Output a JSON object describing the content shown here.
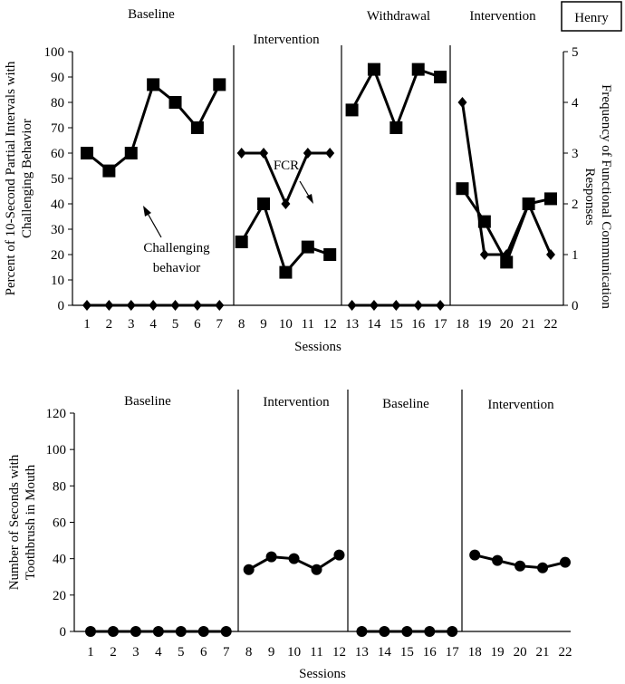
{
  "participant": "Henry",
  "chart_data": [
    {
      "type": "line",
      "x": [
        1,
        2,
        3,
        4,
        5,
        6,
        7,
        8,
        9,
        10,
        11,
        12,
        13,
        14,
        15,
        16,
        17,
        18,
        19,
        20,
        21,
        22
      ],
      "xlabel": "Sessions",
      "ylabel_lines": [
        "Percent of 10-Second Partial Intervals with",
        "Challenging Behavior"
      ],
      "y2label_lines": [
        "Frequency of Functional Communication",
        "Responses"
      ],
      "ylim": [
        0,
        100
      ],
      "y2lim": [
        0,
        5
      ],
      "yticks": [
        0,
        10,
        20,
        30,
        40,
        50,
        60,
        70,
        80,
        90,
        100
      ],
      "y2ticks": [
        0,
        1,
        2,
        3,
        4,
        5
      ],
      "phases": [
        {
          "label": "Baseline",
          "sessions": [
            1,
            7
          ]
        },
        {
          "label": "Intervention",
          "sessions": [
            8,
            12
          ]
        },
        {
          "label": "Withdrawal",
          "sessions": [
            13,
            17
          ]
        },
        {
          "label": "Intervention",
          "sessions": [
            18,
            22
          ]
        }
      ],
      "series": [
        {
          "name": "Challenging behavior",
          "axis": "left",
          "marker": "square",
          "values": [
            60,
            53,
            60,
            87,
            80,
            70,
            87,
            25,
            40,
            13,
            23,
            20,
            77,
            93,
            70,
            93,
            90,
            46,
            33,
            17,
            40,
            42
          ]
        },
        {
          "name": "FCR",
          "axis": "right",
          "marker": "diamond",
          "values": [
            0,
            0,
            0,
            0,
            0,
            0,
            0,
            3,
            3,
            2,
            3,
            3,
            0,
            0,
            0,
            0,
            0,
            4,
            1,
            1,
            2,
            1
          ]
        }
      ],
      "annotations": [
        {
          "text_lines": [
            "Challenging",
            "behavior"
          ],
          "points_to": "Challenging behavior session 3"
        },
        {
          "text_lines": [
            "FCR"
          ],
          "points_to": "FCR session 11"
        }
      ]
    },
    {
      "type": "line",
      "x": [
        1,
        2,
        3,
        4,
        5,
        6,
        7,
        8,
        9,
        10,
        11,
        12,
        13,
        14,
        15,
        16,
        17,
        18,
        19,
        20,
        21,
        22
      ],
      "xlabel": "Sessions",
      "ylabel_lines": [
        "Number of Seconds with",
        "Toothbrush in Mouth"
      ],
      "ylim": [
        0,
        120
      ],
      "yticks": [
        0,
        20,
        40,
        60,
        80,
        100,
        120
      ],
      "phases": [
        {
          "label": "Baseline",
          "sessions": [
            1,
            7
          ]
        },
        {
          "label": "Intervention",
          "sessions": [
            8,
            12
          ]
        },
        {
          "label": "Baseline",
          "sessions": [
            13,
            17
          ]
        },
        {
          "label": "Intervention",
          "sessions": [
            18,
            22
          ]
        }
      ],
      "series": [
        {
          "name": "Seconds with toothbrush",
          "marker": "circle",
          "values": [
            0,
            0,
            0,
            0,
            0,
            0,
            0,
            34,
            41,
            40,
            34,
            42,
            0,
            0,
            0,
            0,
            0,
            42,
            39,
            36,
            35,
            38
          ]
        }
      ]
    }
  ]
}
